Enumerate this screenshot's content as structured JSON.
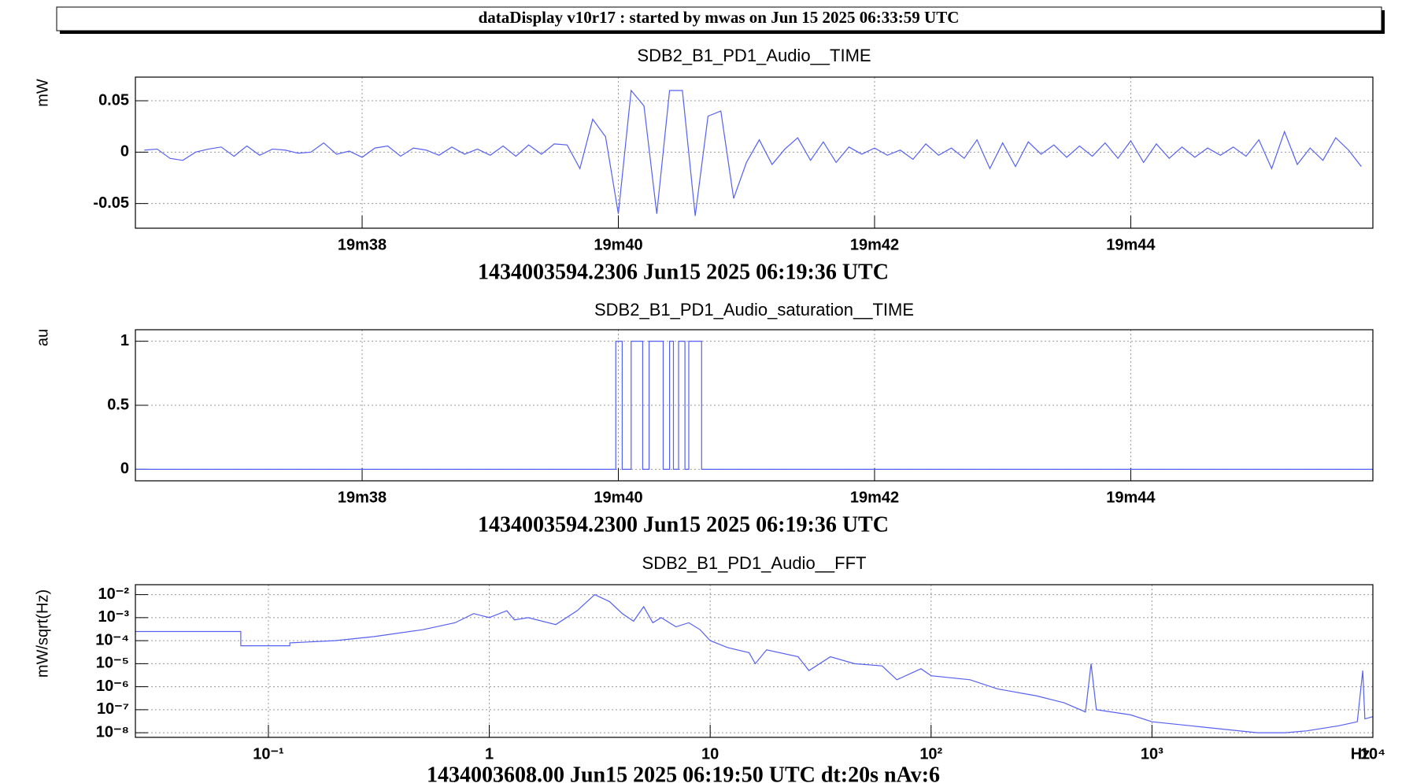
{
  "header": {
    "title": "dataDisplay v10r17 : started by mwas on Jun 15 2025 06:33:59 UTC"
  },
  "chart_data": [
    {
      "type": "line",
      "title": "SDB2_B1_PD1_Audio__TIME",
      "ylabel": "mW",
      "xlabel": "1434003594.2306 Jun15 2025 06:19:36 UTC",
      "xlim": [
        1176.23,
        1185.89
      ],
      "xticks": [
        {
          "value": 1178,
          "label": "19m38"
        },
        {
          "value": 1180,
          "label": "19m40"
        },
        {
          "value": 1182,
          "label": "19m42"
        },
        {
          "value": 1184,
          "label": "19m44"
        }
      ],
      "ylim": [
        -0.074,
        0.073
      ],
      "yticks": [
        -0.05,
        0,
        0.05
      ],
      "grid": true,
      "series": [
        {
          "color": "#5560f2",
          "x": [
            1176.3,
            1176.4,
            1176.5,
            1176.6,
            1176.7,
            1176.8,
            1176.9,
            1177.0,
            1177.1,
            1177.2,
            1177.3,
            1177.4,
            1177.5,
            1177.6,
            1177.7,
            1177.8,
            1177.9,
            1178.0,
            1178.1,
            1178.2,
            1178.3,
            1178.4,
            1178.5,
            1178.6,
            1178.7,
            1178.8,
            1178.9,
            1179.0,
            1179.1,
            1179.2,
            1179.3,
            1179.4,
            1179.5,
            1179.6,
            1179.7,
            1179.8,
            1179.9,
            1180.0,
            1180.1,
            1180.2,
            1180.3,
            1180.4,
            1180.5,
            1180.6,
            1180.7,
            1180.8,
            1180.9,
            1181.0,
            1181.1,
            1181.2,
            1181.3,
            1181.4,
            1181.5,
            1181.6,
            1181.7,
            1181.8,
            1181.9,
            1182.0,
            1182.1,
            1182.2,
            1182.3,
            1182.4,
            1182.5,
            1182.6,
            1182.7,
            1182.8,
            1182.9,
            1183.0,
            1183.1,
            1183.2,
            1183.3,
            1183.4,
            1183.5,
            1183.6,
            1183.7,
            1183.8,
            1183.9,
            1184.0,
            1184.1,
            1184.2,
            1184.3,
            1184.4,
            1184.5,
            1184.6,
            1184.7,
            1184.8,
            1184.9,
            1185.0,
            1185.1,
            1185.2,
            1185.3,
            1185.4,
            1185.5,
            1185.6,
            1185.7,
            1185.8
          ],
          "values": [
            0.002,
            0.003,
            -0.006,
            -0.008,
            0.0,
            0.003,
            0.005,
            -0.004,
            0.006,
            -0.003,
            0.003,
            0.002,
            -0.001,
            0.0,
            0.009,
            -0.002,
            0.001,
            -0.005,
            0.004,
            0.006,
            -0.004,
            0.004,
            0.002,
            -0.003,
            0.005,
            -0.002,
            0.003,
            -0.003,
            0.006,
            -0.004,
            0.007,
            -0.002,
            0.008,
            0.007,
            -0.016,
            0.032,
            0.015,
            -0.06,
            0.06,
            0.045,
            -0.06,
            0.06,
            0.06,
            -0.062,
            0.035,
            0.04,
            -0.045,
            -0.01,
            0.012,
            -0.012,
            0.003,
            0.014,
            -0.008,
            0.01,
            -0.01,
            0.005,
            -0.002,
            0.004,
            -0.003,
            0.002,
            -0.007,
            0.008,
            -0.003,
            0.004,
            -0.006,
            0.012,
            -0.016,
            0.009,
            -0.014,
            0.01,
            -0.002,
            0.007,
            -0.005,
            0.006,
            -0.004,
            0.009,
            -0.006,
            0.011,
            -0.01,
            0.008,
            -0.006,
            0.005,
            -0.005,
            0.004,
            -0.003,
            0.005,
            -0.004,
            0.012,
            -0.016,
            0.02,
            -0.012,
            0.004,
            -0.008,
            0.014,
            0.002,
            -0.014
          ]
        }
      ]
    },
    {
      "type": "line",
      "title": "SDB2_B1_PD1_Audio_saturation__TIME",
      "ylabel": "au",
      "xlabel": "1434003594.2300 Jun15 2025 06:19:36 UTC",
      "xlim": [
        1176.23,
        1185.89
      ],
      "xticks": [
        {
          "value": 1178,
          "label": "19m38"
        },
        {
          "value": 1180,
          "label": "19m40"
        },
        {
          "value": 1182,
          "label": "19m42"
        },
        {
          "value": 1184,
          "label": "19m44"
        }
      ],
      "ylim": [
        -0.09,
        1.09
      ],
      "yticks": [
        0,
        0.5,
        1
      ],
      "grid": true,
      "series": [
        {
          "color": "#5560f2",
          "x": [
            1176.23,
            1179.98,
            1179.98,
            1180.03,
            1180.03,
            1180.1,
            1180.1,
            1180.19,
            1180.19,
            1180.24,
            1180.24,
            1180.35,
            1180.35,
            1180.4,
            1180.4,
            1180.43,
            1180.43,
            1180.47,
            1180.47,
            1180.52,
            1180.52,
            1180.55,
            1180.55,
            1180.65,
            1180.65,
            1185.89
          ],
          "values": [
            0,
            0,
            1,
            1,
            0,
            0,
            1,
            1,
            0,
            0,
            1,
            1,
            0,
            0,
            1,
            1,
            0,
            0,
            1,
            1,
            0,
            0,
            1,
            1,
            0,
            0
          ]
        }
      ]
    },
    {
      "type": "line",
      "title": "SDB2_B1_PD1_Audio__FFT",
      "ylabel": "mW/sqrt(Hz)",
      "xlabel": "1434003608.00 Jun15 2025 06:19:50 UTC dt:20s nAv:6",
      "xunit": "Hz",
      "logx": true,
      "logy": true,
      "xlim": [
        0.025,
        10000
      ],
      "xticks": [
        {
          "value": 0.1,
          "label": "10⁻¹"
        },
        1,
        10,
        {
          "value": 100,
          "label": "10²"
        },
        {
          "value": 1000,
          "label": "10³"
        },
        {
          "value": 10000,
          "label": "10⁴"
        }
      ],
      "ylim": [
        6.3e-09,
        0.027
      ],
      "yticks": [
        {
          "value": 0.01,
          "label": "10⁻²"
        },
        {
          "value": 0.001,
          "label": "10⁻³"
        },
        {
          "value": 0.0001,
          "label": "10⁻⁴"
        },
        {
          "value": 1e-05,
          "label": "10⁻⁵"
        },
        {
          "value": 1e-06,
          "label": "10⁻⁶"
        },
        {
          "value": 1e-07,
          "label": "10⁻⁷"
        },
        {
          "value": 1e-08,
          "label": "10⁻⁸"
        }
      ],
      "grid": true,
      "series": [
        {
          "color": "#5560f2",
          "x": [
            0.025,
            0.075,
            0.075,
            0.125,
            0.125,
            0.2,
            0.3,
            0.5,
            0.7,
            0.85,
            1,
            1.2,
            1.3,
            1.5,
            2,
            2.5,
            3,
            3.5,
            4,
            4.5,
            5,
            5.5,
            6,
            7,
            8,
            9,
            10,
            12,
            15,
            16,
            18,
            25,
            28,
            35,
            45,
            60,
            70,
            90,
            100,
            150,
            200,
            300,
            400,
            500,
            530,
            560,
            800,
            1000,
            1500,
            2000,
            3000,
            4000,
            5000,
            7000,
            8500,
            9000,
            9200,
            10000
          ],
          "values": [
            0.00025,
            0.00025,
            6e-05,
            6e-05,
            8e-05,
            0.0001,
            0.00015,
            0.0003,
            0.0006,
            0.0015,
            0.001,
            0.002,
            0.0008,
            0.001,
            0.0005,
            0.002,
            0.01,
            0.005,
            0.0015,
            0.0007,
            0.003,
            0.0006,
            0.001,
            0.0004,
            0.0006,
            0.0003,
            0.0001,
            5e-05,
            3e-05,
            1e-05,
            4e-05,
            2e-05,
            5e-06,
            2e-05,
            1e-05,
            8e-06,
            2e-06,
            6e-06,
            3e-06,
            2e-06,
            8e-07,
            4e-07,
            2e-07,
            8e-08,
            1e-05,
            1e-07,
            6e-08,
            3e-08,
            2e-08,
            1.5e-08,
            1e-08,
            1e-08,
            1.2e-08,
            2e-08,
            3e-08,
            5e-06,
            4e-08,
            5e-08
          ]
        }
      ]
    }
  ]
}
